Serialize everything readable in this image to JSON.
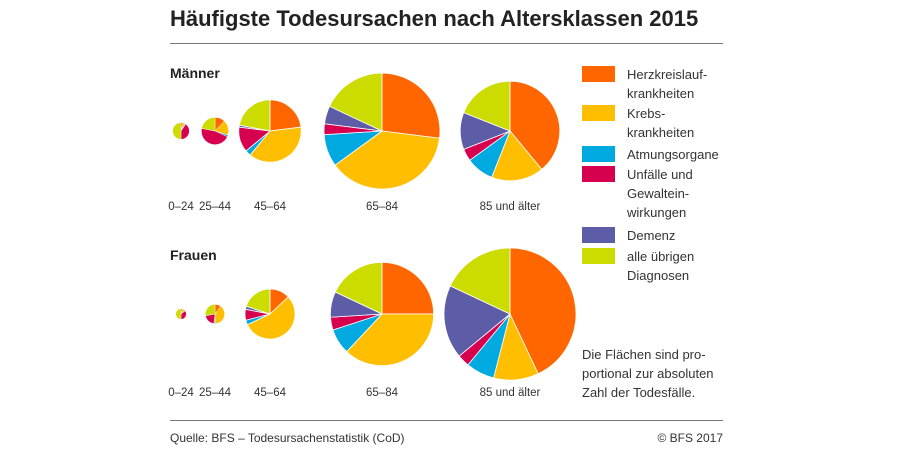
{
  "title": "Häufigste Todesursachen nach Altersklassen 2015",
  "legend": [
    {
      "key": "herz",
      "label": "Herzkreislauf-\nkrankheiten",
      "color": "#ff6600"
    },
    {
      "key": "krebs",
      "label": "Krebs-\nkrankheiten",
      "color": "#ffbf00"
    },
    {
      "key": "atmung",
      "label": "Atmungsorgane",
      "color": "#00a9e0"
    },
    {
      "key": "unfall",
      "label": "Unfälle und\nGewaltein-\nwirkungen",
      "color": "#d6004f"
    },
    {
      "key": "demenz",
      "label": "Demenz",
      "color": "#5c5da6"
    },
    {
      "key": "uebrige",
      "label": "alle übrigen\nDiagnosen",
      "color": "#cddc00"
    }
  ],
  "note": "Die Flächen sind pro-\nportional zur absoluten\nZahl der Todesfälle.",
  "source": "Quelle: BFS – Todesursachenstatistik (CoD)",
  "copyright": "© BFS 2017",
  "chart_data": [
    {
      "type": "pie",
      "title": "Männer",
      "categories": [
        "Herzkreislaufkrankheiten",
        "Krebskrankheiten",
        "Atmungsorgane",
        "Unfälle und Gewalteinwirkungen",
        "Demenz",
        "alle übrigen Diagnosen"
      ],
      "pies": [
        {
          "age": "0–24",
          "relative_total": 300,
          "values": [
            4,
            4,
            2,
            40,
            0,
            50
          ]
        },
        {
          "age": "25–44",
          "relative_total": 800,
          "values": [
            12,
            18,
            2,
            46,
            0,
            22
          ]
        },
        {
          "age": "45–64",
          "relative_total": 4200,
          "values": [
            23,
            38,
            3,
            13,
            1,
            22
          ]
        },
        {
          "age": "65–84",
          "relative_total": 14500,
          "values": [
            27,
            38,
            9,
            3,
            5,
            18
          ]
        },
        {
          "age": "85 und älter",
          "relative_total": 10700,
          "values": [
            39,
            17,
            9,
            4,
            12,
            19
          ]
        }
      ]
    },
    {
      "type": "pie",
      "title": "Frauen",
      "categories": [
        "Herzkreislaufkrankheiten",
        "Krebskrankheiten",
        "Atmungsorgane",
        "Unfälle und Gewalteinwirkungen",
        "Demenz",
        "alle übrigen Diagnosen"
      ],
      "pies": [
        {
          "age": "0–24",
          "relative_total": 120,
          "values": [
            5,
            8,
            2,
            35,
            0,
            50
          ]
        },
        {
          "age": "25–44",
          "relative_total": 400,
          "values": [
            10,
            40,
            2,
            20,
            0,
            28
          ]
        },
        {
          "age": "45–64",
          "relative_total": 2700,
          "values": [
            13,
            55,
            3,
            7,
            2,
            20
          ]
        },
        {
          "age": "65–84",
          "relative_total": 11500,
          "values": [
            25,
            37,
            8,
            4,
            8,
            18
          ]
        },
        {
          "age": "85 und älter",
          "relative_total": 18800,
          "values": [
            43,
            11,
            7,
            3,
            18,
            18
          ]
        }
      ]
    }
  ]
}
